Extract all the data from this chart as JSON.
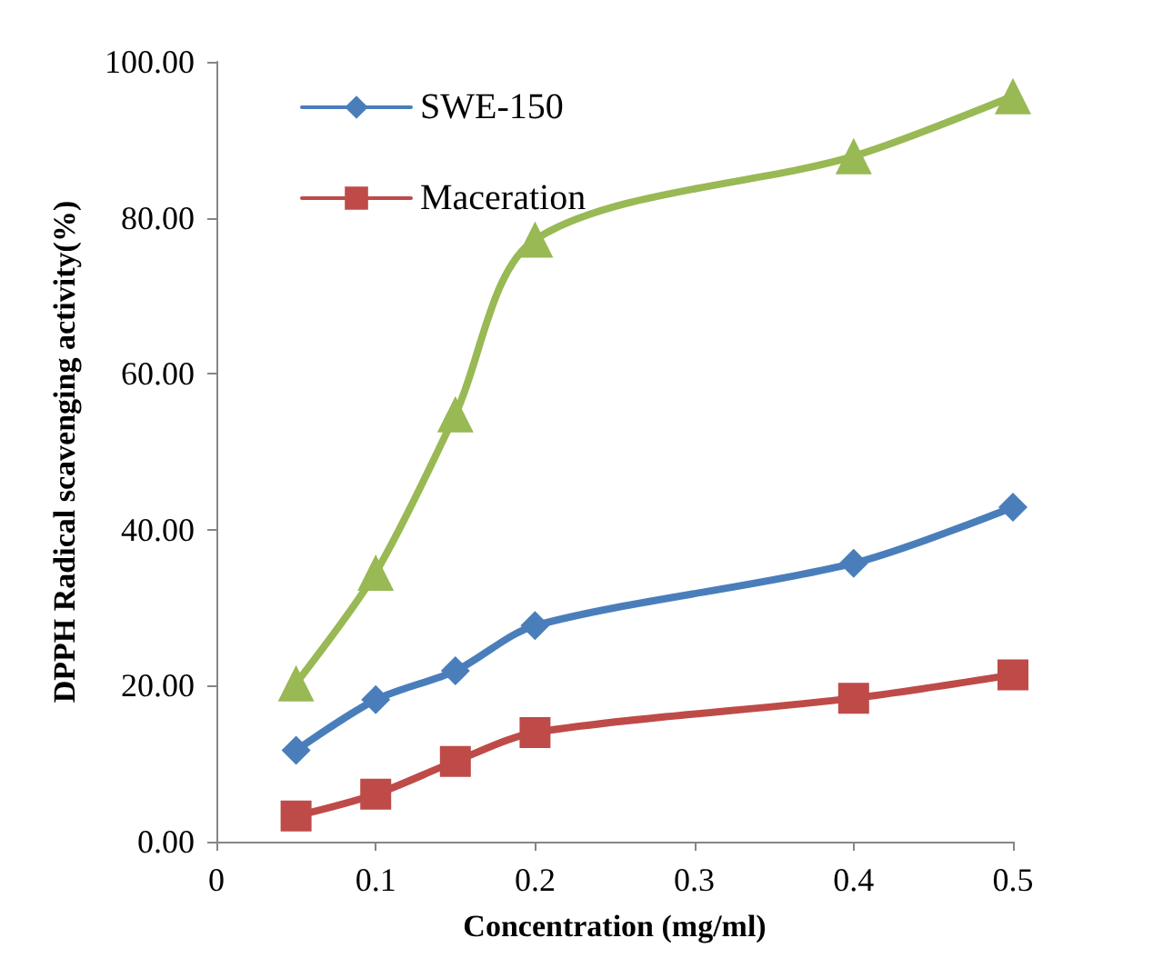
{
  "chart_data": {
    "type": "line",
    "xlabel": "Concentration (mg/ml)",
    "ylabel": "DPPH Radical scavenging activity(%)",
    "x": [
      0.05,
      0.1,
      0.15,
      0.2,
      0.4,
      0.5
    ],
    "series": [
      {
        "name": "SWE-150",
        "color": "#4a7ebb",
        "marker": "diamond",
        "values": [
          11.7,
          18.2,
          21.9,
          27.7,
          35.7,
          42.9
        ]
      },
      {
        "name": "Maceration",
        "color": "#be4b48",
        "marker": "square",
        "values": [
          3.3,
          6.1,
          10.3,
          14.0,
          18.4,
          21.4
        ]
      },
      {
        "color": "#98b954",
        "marker": "triangle",
        "values": [
          20.3,
          34.5,
          54.8,
          77.2,
          87.9,
          95.6
        ]
      }
    ],
    "xlim": [
      0,
      0.5
    ],
    "xticks": [
      0,
      0.1,
      0.2,
      0.3,
      0.4,
      0.5
    ],
    "ylim": [
      0,
      100
    ],
    "yticks": [
      {
        "value": 0,
        "label": "0.00"
      },
      {
        "value": 20,
        "label": "20.00"
      },
      {
        "value": 40,
        "label": "40.00"
      },
      {
        "value": 60,
        "label": "60.00"
      },
      {
        "value": 80,
        "label": "80.00"
      },
      {
        "value": 100,
        "label": "100.00"
      }
    ],
    "grid": false,
    "legend": "top left",
    "line_style": "solid"
  }
}
